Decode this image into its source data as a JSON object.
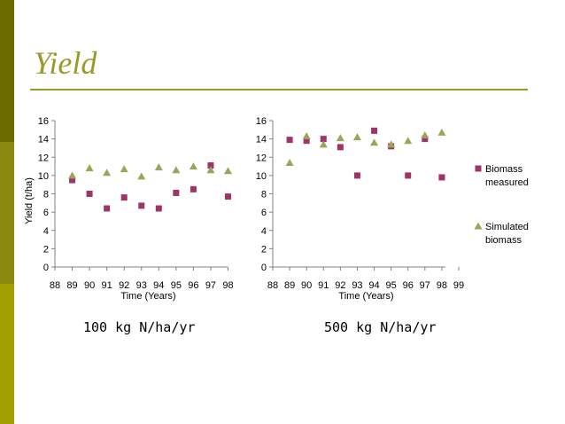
{
  "slide": {
    "title": "Yield",
    "caption_left": "100 kg N/ha/yr",
    "caption_right": "500 kg N/ha/yr"
  },
  "colors": {
    "measured": "#a0336a",
    "simulated": "#9aa55a",
    "title": "#9a9a2a"
  },
  "chart_data": [
    {
      "type": "scatter",
      "xlabel": "Time (Years)",
      "ylabel": "Yield (t/ha)",
      "ylim": [
        0,
        16
      ],
      "yticks": [
        0,
        2,
        4,
        6,
        8,
        10,
        12,
        14,
        16
      ],
      "xlim": [
        88,
        98
      ],
      "xtick_labels": [
        "88",
        "89",
        "90",
        "91",
        "92",
        "93",
        "94",
        "95",
        "96",
        "97",
        "98"
      ],
      "series": [
        {
          "name": "Biomass measured",
          "marker": "square",
          "x": [
            89,
            90,
            91,
            92,
            93,
            94,
            95,
            96,
            97,
            98
          ],
          "y": [
            9.5,
            8.0,
            6.4,
            7.6,
            6.7,
            6.4,
            8.1,
            8.5,
            11.1,
            7.7
          ]
        },
        {
          "name": "Simulated biomass",
          "marker": "triangle",
          "x": [
            89,
            90,
            91,
            92,
            93,
            94,
            95,
            96,
            97,
            98
          ],
          "y": [
            10.0,
            10.8,
            10.3,
            10.7,
            9.9,
            10.9,
            10.6,
            11.0,
            10.6,
            10.5
          ]
        }
      ]
    },
    {
      "type": "scatter",
      "xlabel": "Time (Years)",
      "ylabel": "",
      "ylim": [
        0,
        16
      ],
      "yticks": [
        0,
        2,
        4,
        6,
        8,
        10,
        12,
        14,
        16
      ],
      "xlim": [
        88,
        99
      ],
      "xtick_labels": [
        "88",
        "89",
        "90",
        "91",
        "92",
        "93",
        "94",
        "95",
        "96",
        "97",
        "98",
        "99"
      ],
      "legend": {
        "position": "right",
        "entries": [
          "Biomass measured",
          "Simulated biomass"
        ]
      },
      "series": [
        {
          "name": "Biomass measured",
          "marker": "square",
          "x": [
            89,
            90,
            91,
            92,
            93,
            94,
            95,
            96,
            97,
            98
          ],
          "y": [
            13.9,
            13.8,
            14.0,
            13.1,
            10.0,
            14.9,
            13.2,
            10.0,
            14.0,
            9.8
          ]
        },
        {
          "name": "Simulated biomass",
          "marker": "triangle",
          "x": [
            89,
            90,
            91,
            92,
            93,
            94,
            95,
            96,
            97,
            98
          ],
          "y": [
            11.4,
            14.3,
            13.4,
            14.1,
            14.2,
            13.6,
            13.4,
            13.8,
            14.4,
            14.7
          ]
        }
      ]
    }
  ]
}
